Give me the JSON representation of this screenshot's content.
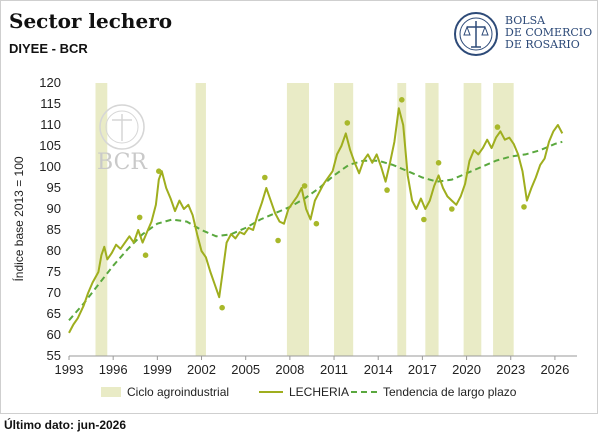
{
  "header": {
    "title": "Sector lechero",
    "subtitle": "DIYEE - BCR"
  },
  "logo": {
    "line1": "BOLSA",
    "line2": "DE COMERCIO",
    "line3": "DE ROSARIO",
    "watermark": "BCR",
    "color": "#2d4a78"
  },
  "footer": {
    "last_data": "Último dato: jun-2026"
  },
  "chart_data": {
    "type": "line",
    "ylabel": "Índice base 2013 = 100",
    "xlabel": "",
    "ylim": [
      55,
      120
    ],
    "xlim": [
      1993,
      2027.5
    ],
    "yticks": [
      55,
      60,
      65,
      70,
      75,
      80,
      85,
      90,
      95,
      100,
      105,
      110,
      115,
      120
    ],
    "xticks": [
      1993,
      1996,
      1999,
      2002,
      2005,
      2008,
      2011,
      2014,
      2017,
      2020,
      2023,
      2026
    ],
    "grid": false,
    "legend_position": "bottom",
    "colors": {
      "cycle": "#e9ebc6",
      "series": "#9fae1e",
      "trend": "#5aa83e",
      "dots": "#a8b82a"
    },
    "cycles": {
      "name": "Ciclo agroindustrial",
      "periods": [
        [
          1994.8,
          1995.6
        ],
        [
          2001.6,
          2002.3
        ],
        [
          2007.8,
          2009.3
        ],
        [
          2011.0,
          2012.3
        ],
        [
          2015.3,
          2015.9
        ],
        [
          2017.2,
          2018.1
        ],
        [
          2019.8,
          2021.0
        ],
        [
          2021.8,
          2023.2
        ]
      ]
    },
    "series": [
      {
        "name": "LECHERIA",
        "x": [
          1993.0,
          1993.3,
          1993.6,
          1994.0,
          1994.3,
          1994.6,
          1995.0,
          1995.2,
          1995.4,
          1995.6,
          1995.9,
          1996.2,
          1996.5,
          1996.8,
          1997.1,
          1997.4,
          1997.7,
          1998.0,
          1998.3,
          1998.6,
          1998.9,
          1999.1,
          1999.3,
          1999.6,
          1999.9,
          2000.2,
          2000.5,
          2000.8,
          2001.1,
          2001.4,
          2001.7,
          2002.0,
          2002.3,
          2002.6,
          2002.9,
          2003.2,
          2003.4,
          2003.7,
          2004.0,
          2004.3,
          2004.6,
          2004.9,
          2005.2,
          2005.5,
          2005.8,
          2006.1,
          2006.4,
          2006.7,
          2007.0,
          2007.3,
          2007.6,
          2007.9,
          2008.2,
          2008.5,
          2008.8,
          2009.1,
          2009.4,
          2009.7,
          2010.0,
          2010.3,
          2010.6,
          2010.9,
          2011.2,
          2011.5,
          2011.8,
          2012.1,
          2012.4,
          2012.7,
          2013.0,
          2013.3,
          2013.6,
          2013.9,
          2014.2,
          2014.5,
          2014.8,
          2015.1,
          2015.4,
          2015.7,
          2016.0,
          2016.3,
          2016.6,
          2016.9,
          2017.2,
          2017.5,
          2017.8,
          2018.1,
          2018.4,
          2018.7,
          2019.0,
          2019.3,
          2019.6,
          2019.9,
          2020.2,
          2020.5,
          2020.8,
          2021.1,
          2021.4,
          2021.7,
          2022.0,
          2022.3,
          2022.6,
          2022.9,
          2023.2,
          2023.5,
          2023.8,
          2024.1,
          2024.4,
          2024.7,
          2025.0,
          2025.3,
          2025.6,
          2025.9,
          2026.2,
          2026.5
        ],
        "values": [
          60.5,
          62.5,
          64.0,
          67.0,
          70.0,
          72.5,
          75.0,
          79.0,
          81.0,
          78.0,
          79.5,
          81.5,
          80.5,
          82.0,
          83.5,
          82.0,
          85.0,
          82.0,
          84.5,
          87.0,
          91.0,
          97.0,
          99.0,
          95.0,
          92.5,
          89.5,
          92.0,
          90.0,
          91.0,
          88.5,
          84.0,
          80.0,
          78.5,
          75.0,
          72.0,
          69.0,
          74.0,
          82.0,
          84.0,
          83.0,
          84.5,
          84.0,
          85.5,
          85.0,
          88.5,
          91.5,
          95.0,
          92.0,
          89.0,
          87.0,
          86.5,
          90.0,
          91.5,
          93.0,
          95.0,
          90.0,
          87.5,
          92.0,
          94.0,
          96.0,
          97.5,
          99.0,
          103.0,
          105.0,
          108.0,
          104.0,
          101.0,
          98.5,
          101.5,
          103.0,
          101.0,
          103.0,
          100.0,
          96.5,
          101.0,
          106.0,
          114.0,
          110.0,
          98.0,
          92.0,
          90.0,
          92.5,
          90.0,
          92.0,
          95.5,
          98.0,
          95.0,
          93.0,
          92.0,
          91.0,
          93.0,
          96.0,
          101.5,
          104.0,
          103.0,
          104.5,
          106.5,
          104.5,
          107.0,
          108.5,
          106.5,
          107.0,
          105.5,
          103.0,
          99.0,
          92.0,
          95.0,
          97.5,
          100.5,
          102.0,
          106.0,
          108.5,
          110.0,
          108.0
        ]
      },
      {
        "name": "Tendencia de largo plazo",
        "x": [
          1993.0,
          1994.0,
          1995.0,
          1996.0,
          1997.0,
          1998.0,
          1999.0,
          2000.0,
          2001.0,
          2002.0,
          2003.0,
          2004.0,
          2005.0,
          2006.0,
          2007.0,
          2008.0,
          2009.0,
          2010.0,
          2011.0,
          2012.0,
          2013.0,
          2014.0,
          2015.0,
          2016.0,
          2017.0,
          2018.0,
          2019.0,
          2020.0,
          2021.0,
          2022.0,
          2023.0,
          2024.0,
          2025.0,
          2026.0,
          2026.5
        ],
        "values": [
          63.5,
          67.5,
          72.0,
          76.5,
          80.5,
          84.0,
          86.5,
          87.5,
          87.0,
          85.0,
          83.5,
          84.0,
          85.5,
          87.5,
          89.0,
          90.5,
          92.5,
          95.0,
          98.0,
          100.5,
          101.5,
          101.5,
          100.5,
          99.0,
          97.5,
          96.5,
          97.0,
          98.5,
          100.0,
          101.5,
          102.5,
          103.0,
          104.0,
          105.5,
          106.0
        ]
      }
    ],
    "markers": {
      "x": [
        1997.8,
        1998.2,
        1999.1,
        2003.4,
        2006.3,
        2007.2,
        2009.0,
        2009.8,
        2011.9,
        2014.6,
        2015.6,
        2017.1,
        2018.1,
        2019.0,
        2022.1,
        2023.9
      ],
      "values": [
        88.0,
        79.0,
        99.0,
        66.5,
        97.5,
        82.5,
        95.5,
        86.5,
        110.5,
        94.5,
        116.0,
        87.5,
        101.0,
        90.0,
        109.5,
        90.5
      ]
    }
  }
}
